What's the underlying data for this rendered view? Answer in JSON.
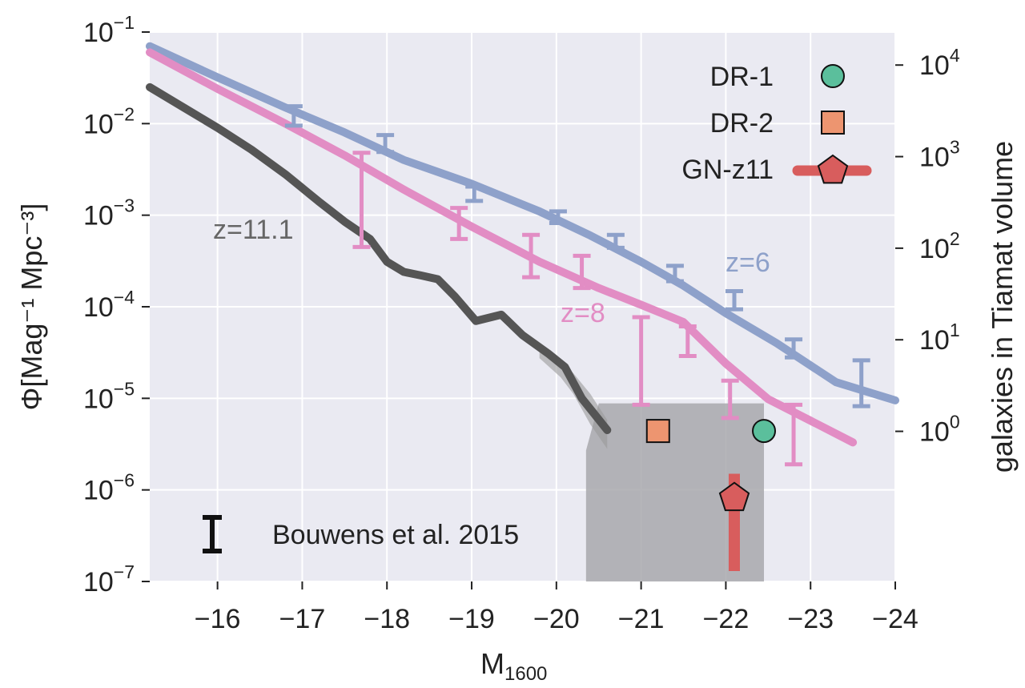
{
  "chart_data": {
    "type": "line",
    "xlabel_main": "M",
    "xlabel_sub": "1600",
    "ylabel": "Φ[Mag⁻¹ Mpc⁻³]",
    "ylabel_right": "galaxies in Tiamat volume",
    "xlim": [
      -15.2,
      -24
    ],
    "ylim": [
      1e-07,
      0.1
    ],
    "yscale": "log",
    "grid": true,
    "x_ticks": [
      -16,
      -17,
      -18,
      -19,
      -20,
      -21,
      -22,
      -23,
      -24
    ],
    "x_tick_labels": [
      "−16",
      "−17",
      "−18",
      "−19",
      "−20",
      "−21",
      "−22",
      "−23",
      "−24"
    ],
    "y_ticks": [
      {
        "base": "10",
        "exp": "−1",
        "value": 0.1
      },
      {
        "base": "10",
        "exp": "−2",
        "value": 0.01
      },
      {
        "base": "10",
        "exp": "−3",
        "value": 0.001
      },
      {
        "base": "10",
        "exp": "−4",
        "value": 0.0001
      },
      {
        "base": "10",
        "exp": "−5",
        "value": 1e-05
      },
      {
        "base": "10",
        "exp": "−6",
        "value": 1e-06
      },
      {
        "base": "10",
        "exp": "−7",
        "value": 1e-07
      }
    ],
    "y_right_ticks": [
      {
        "base": "10",
        "exp": "4",
        "value": 0.0436
      },
      {
        "base": "10",
        "exp": "3",
        "value": 0.00436
      },
      {
        "base": "10",
        "exp": "2",
        "value": 0.000436
      },
      {
        "base": "10",
        "exp": "1",
        "value": 4.36e-05
      },
      {
        "base": "10",
        "exp": "0",
        "value": 4.36e-06
      }
    ],
    "series": [
      {
        "name": "z=6",
        "color": "#8ea1ca",
        "x": [
          -15.2,
          -16,
          -16.8,
          -17.5,
          -18.2,
          -19,
          -19.8,
          -20.4,
          -21,
          -21.5,
          -22,
          -22.6,
          -23.3,
          -24
        ],
        "y": [
          0.07,
          0.032,
          0.015,
          0.008,
          0.004,
          0.0022,
          0.0011,
          0.0006,
          0.00031,
          0.00017,
          8.5e-05,
          4e-05,
          1.5e-05,
          9.5e-06
        ]
      },
      {
        "name": "z=8",
        "color": "#e28dc4",
        "x": [
          -15.2,
          -16,
          -16.8,
          -17.5,
          -18.2,
          -19,
          -19.8,
          -20.5,
          -21,
          -21.5,
          -22,
          -22.5,
          -23,
          -23.5
        ],
        "y": [
          0.06,
          0.024,
          0.01,
          0.0045,
          0.0019,
          0.00075,
          0.00031,
          0.00016,
          0.000105,
          6.8e-05,
          2.4e-05,
          9.8e-06,
          5.7e-06,
          3.3e-06
        ]
      },
      {
        "name": "z=11.1",
        "color": "#555555",
        "x": [
          -15.2,
          -15.6,
          -16,
          -16.4,
          -16.8,
          -17.2,
          -17.5,
          -17.8,
          -18,
          -18.2,
          -18.4,
          -18.6,
          -18.8,
          -19.05,
          -19.35,
          -19.6,
          -19.9,
          -20.1,
          -20.3,
          -20.6
        ],
        "y": [
          0.025,
          0.015,
          0.009,
          0.0052,
          0.0028,
          0.0014,
          0.00085,
          0.00055,
          0.00031,
          0.00024,
          0.00022,
          0.0002,
          0.00013,
          7e-05,
          8.2e-05,
          4.9e-05,
          3.1e-05,
          2.2e-05,
          1e-05,
          4.5e-06
        ]
      }
    ],
    "z11_band_lower": [
      2.75e-05,
      1.7e-05,
      1.12e-05,
      5.2e-06,
      2.8e-06
    ],
    "z11_band_upper": [
      3.6e-05,
      2.6e-05,
      1.88e-05,
      1.12e-05,
      5.8e-06
    ],
    "z11_band_x": [
      -19.8,
      -20.05,
      -20.2,
      -20.4,
      -20.6
    ],
    "bouwens_errorbars": {
      "z6": {
        "color": "#8ea1ca",
        "x": [
          -16.9,
          -17.98,
          -19.03,
          -20.02,
          -20.7,
          -21.4,
          -22.1,
          -22.8,
          -23.6
        ],
        "ylo": [
          0.0095,
          0.0049,
          0.00143,
          0.00082,
          0.00044,
          0.00019,
          9.4e-05,
          2.8e-05,
          8.2e-06
        ],
        "yhi": [
          0.0155,
          0.0075,
          0.00205,
          0.0011,
          0.00061,
          0.00028,
          0.000148,
          4.4e-05,
          2.6e-05
        ]
      },
      "z8": {
        "color": "#e28dc4",
        "x": [
          -17.7,
          -18.85,
          -19.7,
          -20.3,
          -21.0,
          -21.55,
          -22.05,
          -22.8
        ],
        "ylo": [
          0.00045,
          0.00055,
          0.00021,
          0.00016,
          8.5e-06,
          2.9e-05,
          6.1e-06,
          1.9e-06
        ],
        "yhi": [
          0.0048,
          0.0012,
          0.00061,
          0.00036,
          7.7e-05,
          6.1e-05,
          1.56e-05,
          8.5e-06
        ]
      }
    },
    "shaded_region": {
      "x": [
        -20.35,
        -22.45
      ],
      "y": [
        1e-07,
        8.8e-06
      ],
      "y_step": 2.7e-06,
      "x_step": -20.5
    },
    "points": [
      {
        "name": "DR-1",
        "x": -22.45,
        "y": 4.4e-06,
        "color": "#5bbf9c",
        "marker": "circle"
      },
      {
        "name": "DR-2",
        "x": -21.2,
        "y": 4.4e-06,
        "color": "#ed9570",
        "marker": "square"
      },
      {
        "name": "GN-z11",
        "x": -22.1,
        "y": 8.5e-07,
        "color": "#d85d5d",
        "marker": "pentagon",
        "err_lo": 1.3e-07,
        "err_hi": 1.5e-06
      }
    ],
    "legend": [
      {
        "label": "DR-1",
        "marker": "circle",
        "color": "#5bbf9c"
      },
      {
        "label": "DR-2",
        "marker": "square",
        "color": "#ed9570"
      },
      {
        "label": "GN-z11",
        "marker": "pentagon",
        "color": "#d85d5d"
      }
    ],
    "legend_position": "top-right",
    "annotations": [
      {
        "text": "z=11.1",
        "color": "#666666"
      },
      {
        "text": "z=8",
        "color": "#e28dc4"
      },
      {
        "text": "z=6",
        "color": "#8ea1ca"
      },
      {
        "text": "Bouwens et al. 2015",
        "color": "#222222"
      }
    ]
  }
}
